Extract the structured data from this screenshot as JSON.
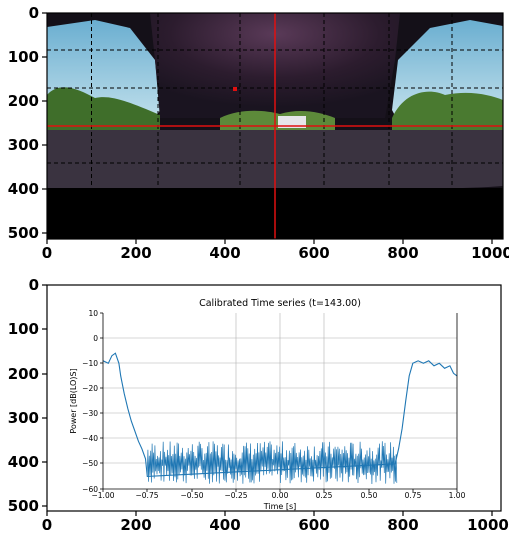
{
  "chart_data": [
    {
      "type": "heatmap",
      "title": "",
      "description_kind": "image with grid overlay",
      "xlim": [
        0,
        1024
      ],
      "ylim": [
        512,
        0
      ],
      "x_ticks": [
        "0",
        "200",
        "400",
        "600",
        "800",
        "1000"
      ],
      "y_ticks": [
        "0",
        "100",
        "200",
        "300",
        "400",
        "500"
      ],
      "overlay": {
        "crosshair_x": 512,
        "crosshair_y": 256,
        "crosshair_color": "#e01010",
        "marker": [
          427,
          177
        ],
        "grid_color": "#000000"
      }
    },
    {
      "type": "line",
      "container": {
        "xlim": [
          0,
          1024
        ],
        "ylim": [
          512,
          0
        ],
        "x_ticks": [
          "0",
          "200",
          "400",
          "600",
          "800",
          "1000"
        ],
        "y_ticks": [
          "0",
          "100",
          "200",
          "300",
          "400",
          "500"
        ]
      },
      "title": "Calibrated Time series (t=143.00)",
      "xlabel": "Time [s]",
      "ylabel": "Power [dB(LO)S]",
      "xlim": [
        -1.0,
        1.0
      ],
      "ylim": [
        -60,
        10
      ],
      "x_ticks": [
        "−1.00",
        "−0.75",
        "−0.50",
        "−0.25",
        "0.00",
        "0.25",
        "0.50",
        "0.75",
        "1.00"
      ],
      "y_ticks": [
        "10",
        "0",
        "−10",
        "−20",
        "−30",
        "−40",
        "−50",
        "−60"
      ],
      "grid": true,
      "series": [
        {
          "color": "#1f77b4",
          "x": [
            -1.0,
            -0.97,
            -0.95,
            -0.93,
            -0.91,
            -0.9,
            -0.88,
            -0.86,
            -0.84,
            -0.82,
            -0.8,
            -0.78,
            -0.76,
            -0.75,
            0.65,
            0.67,
            0.69,
            0.71,
            0.73,
            0.75,
            0.78,
            0.81,
            0.84,
            0.87,
            0.9,
            0.93,
            0.96,
            0.98,
            1.0
          ],
          "values": [
            -9,
            -10,
            -7,
            -6,
            -10,
            -15,
            -22,
            -28,
            -33,
            -37,
            -41,
            -44,
            -48,
            -55,
            -50,
            -44,
            -36,
            -25,
            -15,
            -10,
            -9,
            -10,
            -9,
            -11,
            -10,
            -12,
            -11,
            -14,
            -15
          ]
        }
      ],
      "noise_band": {
        "x_range": [
          -0.75,
          0.66
        ],
        "values_range": [
          -58,
          -41
        ]
      }
    }
  ]
}
